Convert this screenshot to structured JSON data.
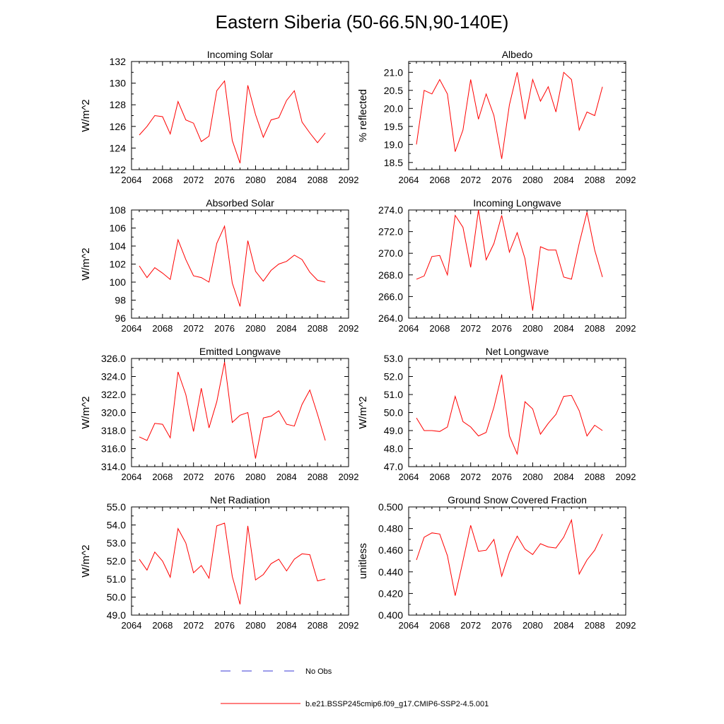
{
  "title": "Eastern Siberia (50-66.5N,90-140E)",
  "colors": {
    "model_line": "#ff0000",
    "obs_line": "#3b3bd6",
    "axis": "#000000"
  },
  "legend": {
    "obs_label": "No Obs",
    "model_label": "b.e21.BSSP245cmip6.f09_g17.CMIP6-SSP2-4.5.001"
  },
  "chart_data": [
    {
      "type": "line",
      "title": "Incoming Solar",
      "ylabel": "W/m^2",
      "xlim": [
        2064,
        2092
      ],
      "ylim": [
        122,
        132
      ],
      "xticks": [
        "2064",
        "2068",
        "2072",
        "2076",
        "2080",
        "2084",
        "2088",
        "2092"
      ],
      "yticks": [
        "122",
        "124",
        "126",
        "128",
        "130",
        "132"
      ],
      "x": [
        2065,
        2066,
        2067,
        2068,
        2069,
        2070,
        2071,
        2072,
        2073,
        2074,
        2075,
        2076,
        2077,
        2078,
        2079,
        2080,
        2081,
        2082,
        2083,
        2084,
        2085,
        2086,
        2087,
        2088,
        2089
      ],
      "series": [
        {
          "values": [
            125.2,
            126.0,
            127.0,
            126.9,
            125.3,
            128.3,
            126.6,
            126.3,
            124.6,
            125.1,
            129.3,
            130.2,
            124.7,
            122.6,
            129.8,
            127.1,
            125.0,
            126.6,
            126.8,
            128.4,
            129.3,
            126.4,
            125.4,
            124.5,
            125.4
          ]
        }
      ]
    },
    {
      "type": "line",
      "title": "Albedo",
      "ylabel": "% reflected",
      "xlim": [
        2064,
        2092
      ],
      "ylim": [
        18.3,
        21.3
      ],
      "xticks": [
        "2064",
        "2068",
        "2072",
        "2076",
        "2080",
        "2084",
        "2088",
        "2092"
      ],
      "yticks": [
        "18.5",
        "19.0",
        "19.5",
        "20.0",
        "20.5",
        "21.0"
      ],
      "x": [
        2065,
        2066,
        2067,
        2068,
        2069,
        2070,
        2071,
        2072,
        2073,
        2074,
        2075,
        2076,
        2077,
        2078,
        2079,
        2080,
        2081,
        2082,
        2083,
        2084,
        2085,
        2086,
        2087,
        2088,
        2089
      ],
      "series": [
        {
          "values": [
            19.0,
            20.5,
            20.4,
            20.8,
            20.4,
            18.8,
            19.4,
            20.8,
            19.7,
            20.4,
            19.8,
            18.6,
            20.1,
            21.0,
            19.7,
            20.8,
            20.2,
            20.6,
            19.9,
            21.0,
            20.8,
            19.4,
            19.9,
            19.8,
            20.6
          ]
        }
      ]
    },
    {
      "type": "line",
      "title": "Absorbed Solar",
      "ylabel": "W/m^2",
      "xlim": [
        2064,
        2092
      ],
      "ylim": [
        96,
        108
      ],
      "xticks": [
        "2064",
        "2068",
        "2072",
        "2076",
        "2080",
        "2084",
        "2088",
        "2092"
      ],
      "yticks": [
        "96",
        "98",
        "100",
        "102",
        "104",
        "106",
        "108"
      ],
      "x": [
        2065,
        2066,
        2067,
        2068,
        2069,
        2070,
        2071,
        2072,
        2073,
        2074,
        2075,
        2076,
        2077,
        2078,
        2079,
        2080,
        2081,
        2082,
        2083,
        2084,
        2085,
        2086,
        2087,
        2088,
        2089
      ],
      "series": [
        {
          "values": [
            101.8,
            100.5,
            101.6,
            101.0,
            100.3,
            104.7,
            102.5,
            100.7,
            100.5,
            100.0,
            104.3,
            106.2,
            99.9,
            97.3,
            104.6,
            101.2,
            100.1,
            101.3,
            102.0,
            102.3,
            103.0,
            102.5,
            101.1,
            100.2,
            100.0
          ]
        }
      ]
    },
    {
      "type": "line",
      "title": "Incoming Longwave",
      "ylabel": "",
      "xlim": [
        2064,
        2092
      ],
      "ylim": [
        264,
        274
      ],
      "xticks": [
        "2064",
        "2068",
        "2072",
        "2076",
        "2080",
        "2084",
        "2088",
        "2092"
      ],
      "yticks": [
        "264.0",
        "266.0",
        "268.0",
        "270.0",
        "272.0",
        "274.0"
      ],
      "x": [
        2065,
        2066,
        2067,
        2068,
        2069,
        2070,
        2071,
        2072,
        2073,
        2074,
        2075,
        2076,
        2077,
        2078,
        2079,
        2080,
        2081,
        2082,
        2083,
        2084,
        2085,
        2086,
        2087,
        2088,
        2089
      ],
      "series": [
        {
          "values": [
            267.6,
            267.9,
            269.7,
            269.8,
            268.0,
            273.5,
            272.4,
            268.7,
            274.0,
            269.4,
            270.9,
            273.5,
            270.1,
            271.9,
            269.5,
            264.7,
            270.6,
            270.3,
            270.3,
            267.8,
            267.6,
            270.9,
            273.8,
            270.3,
            267.8
          ]
        }
      ]
    },
    {
      "type": "line",
      "title": "Emitted Longwave",
      "ylabel": "W/m^2",
      "xlim": [
        2064,
        2092
      ],
      "ylim": [
        314,
        326
      ],
      "xticks": [
        "2064",
        "2068",
        "2072",
        "2076",
        "2080",
        "2084",
        "2088",
        "2092"
      ],
      "yticks": [
        "314.0",
        "316.0",
        "318.0",
        "320.0",
        "322.0",
        "324.0",
        "326.0"
      ],
      "x": [
        2065,
        2066,
        2067,
        2068,
        2069,
        2070,
        2071,
        2072,
        2073,
        2074,
        2075,
        2076,
        2077,
        2078,
        2079,
        2080,
        2081,
        2082,
        2083,
        2084,
        2085,
        2086,
        2087,
        2088,
        2089
      ],
      "series": [
        {
          "values": [
            317.3,
            316.9,
            318.8,
            318.7,
            317.2,
            324.5,
            322.0,
            317.9,
            322.7,
            318.3,
            321.2,
            325.6,
            318.9,
            319.7,
            320.0,
            314.9,
            319.4,
            319.6,
            320.2,
            318.7,
            318.5,
            320.9,
            322.5,
            319.8,
            316.9
          ]
        }
      ]
    },
    {
      "type": "line",
      "title": "Net Longwave",
      "ylabel": "W/m^2",
      "xlim": [
        2064,
        2092
      ],
      "ylim": [
        47,
        53
      ],
      "xticks": [
        "2064",
        "2068",
        "2072",
        "2076",
        "2080",
        "2084",
        "2088",
        "2092"
      ],
      "yticks": [
        "47.0",
        "48.0",
        "49.0",
        "50.0",
        "51.0",
        "52.0",
        "53.0"
      ],
      "x": [
        2065,
        2066,
        2067,
        2068,
        2069,
        2070,
        2071,
        2072,
        2073,
        2074,
        2075,
        2076,
        2077,
        2078,
        2079,
        2080,
        2081,
        2082,
        2083,
        2084,
        2085,
        2086,
        2087,
        2088,
        2089
      ],
      "series": [
        {
          "values": [
            49.7,
            49.0,
            49.0,
            48.95,
            49.2,
            50.9,
            49.5,
            49.2,
            48.7,
            48.9,
            50.3,
            52.1,
            48.7,
            47.7,
            50.6,
            50.2,
            48.8,
            49.4,
            49.9,
            50.9,
            50.95,
            50.1,
            48.7,
            49.3,
            49.0
          ]
        }
      ]
    },
    {
      "type": "line",
      "title": "Net Radiation",
      "ylabel": "W/m^2",
      "xlim": [
        2064,
        2092
      ],
      "ylim": [
        49,
        55
      ],
      "xticks": [
        "2064",
        "2068",
        "2072",
        "2076",
        "2080",
        "2084",
        "2088",
        "2092"
      ],
      "yticks": [
        "49.0",
        "50.0",
        "51.0",
        "52.0",
        "53.0",
        "54.0",
        "55.0"
      ],
      "x": [
        2065,
        2066,
        2067,
        2068,
        2069,
        2070,
        2071,
        2072,
        2073,
        2074,
        2075,
        2076,
        2077,
        2078,
        2079,
        2080,
        2081,
        2082,
        2083,
        2084,
        2085,
        2086,
        2087,
        2088,
        2089
      ],
      "series": [
        {
          "values": [
            52.1,
            51.5,
            52.5,
            52.0,
            51.1,
            53.8,
            53.0,
            51.35,
            51.75,
            51.05,
            53.95,
            54.1,
            51.15,
            49.6,
            53.95,
            50.95,
            51.25,
            51.85,
            52.1,
            51.45,
            52.1,
            52.4,
            52.35,
            50.9,
            51.0
          ]
        }
      ]
    },
    {
      "type": "line",
      "title": "Ground Snow Covered Fraction",
      "ylabel": "unitless",
      "xlim": [
        2064,
        2092
      ],
      "ylim": [
        0.4,
        0.5
      ],
      "xticks": [
        "2064",
        "2068",
        "2072",
        "2076",
        "2080",
        "2084",
        "2088",
        "2092"
      ],
      "yticks": [
        "0.400",
        "0.420",
        "0.440",
        "0.460",
        "0.480",
        "0.500"
      ],
      "x": [
        2065,
        2066,
        2067,
        2068,
        2069,
        2070,
        2071,
        2072,
        2073,
        2074,
        2075,
        2076,
        2077,
        2078,
        2079,
        2080,
        2081,
        2082,
        2083,
        2084,
        2085,
        2086,
        2087,
        2088,
        2089
      ],
      "series": [
        {
          "values": [
            0.451,
            0.472,
            0.476,
            0.475,
            0.455,
            0.418,
            0.45,
            0.483,
            0.459,
            0.46,
            0.47,
            0.436,
            0.458,
            0.473,
            0.461,
            0.456,
            0.466,
            0.463,
            0.462,
            0.472,
            0.488,
            0.438,
            0.451,
            0.46,
            0.475
          ]
        }
      ]
    }
  ]
}
